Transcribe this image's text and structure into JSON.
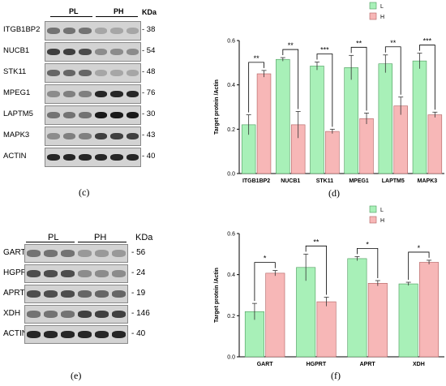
{
  "blots_top": {
    "groups": [
      "PL",
      "PH"
    ],
    "kda_header": "KDa",
    "rows": [
      {
        "protein": "ITGB1BP2",
        "kda": "- 38",
        "intensity": [
          0.55,
          0.55,
          0.55,
          0.35,
          0.35,
          0.35
        ]
      },
      {
        "protein": "NUCB1",
        "kda": "- 54",
        "intensity": [
          0.75,
          0.75,
          0.7,
          0.45,
          0.45,
          0.45
        ]
      },
      {
        "protein": "STK11",
        "kda": "- 48",
        "intensity": [
          0.6,
          0.6,
          0.6,
          0.35,
          0.35,
          0.35
        ]
      },
      {
        "protein": "MPEG1",
        "kda": "- 76",
        "intensity": [
          0.45,
          0.5,
          0.5,
          0.85,
          0.85,
          0.85
        ]
      },
      {
        "protein": "LAPTM5",
        "kda": "- 30",
        "intensity": [
          0.55,
          0.55,
          0.55,
          0.9,
          0.9,
          0.9
        ]
      },
      {
        "protein": "MAPK3",
        "kda": "- 43",
        "intensity": [
          0.45,
          0.5,
          0.5,
          0.75,
          0.75,
          0.75
        ]
      },
      {
        "protein": "ACTIN",
        "kda": "- 40",
        "intensity": [
          0.85,
          0.85,
          0.85,
          0.85,
          0.85,
          0.85
        ]
      }
    ],
    "caption": "(c)"
  },
  "blots_bottom": {
    "groups": [
      "PL",
      "PH"
    ],
    "kda_header": "KDa",
    "rows": [
      {
        "protein": "GART",
        "kda": "- 56",
        "intensity": [
          0.55,
          0.55,
          0.55,
          0.4,
          0.4,
          0.4
        ]
      },
      {
        "protein": "HGPRT",
        "kda": "- 24",
        "intensity": [
          0.7,
          0.7,
          0.7,
          0.45,
          0.45,
          0.45
        ]
      },
      {
        "protein": "APRT",
        "kda": "- 19",
        "intensity": [
          0.7,
          0.7,
          0.7,
          0.6,
          0.6,
          0.6
        ]
      },
      {
        "protein": "XDH",
        "kda": "- 146",
        "intensity": [
          0.55,
          0.55,
          0.55,
          0.75,
          0.75,
          0.75
        ]
      },
      {
        "protein": "ACTIN",
        "kda": "- 40",
        "intensity": [
          0.85,
          0.85,
          0.85,
          0.85,
          0.85,
          0.85
        ]
      }
    ],
    "caption": "(e)"
  },
  "colors": {
    "green": "#a8f0b8",
    "green_edge": "#4a9a5a",
    "red": "#f7b7b7",
    "red_edge": "#b06060"
  },
  "chart_data": [
    {
      "type": "bar",
      "caption": "(d)",
      "categories": [
        "ITGB1BP2",
        "NUCB1",
        "STK11",
        "MPEG1",
        "LAPTM5",
        "MAPK3"
      ],
      "series": [
        {
          "name": "L",
          "values": [
            0.22,
            0.515,
            0.485,
            0.478,
            0.495,
            0.508
          ],
          "errors": [
            0.045,
            0.008,
            0.018,
            0.055,
            0.04,
            0.035
          ]
        },
        {
          "name": "H",
          "values": [
            0.45,
            0.22,
            0.19,
            0.248,
            0.305,
            0.265
          ],
          "errors": [
            0.015,
            0.06,
            0.01,
            0.025,
            0.04,
            0.012
          ]
        }
      ],
      "significance": [
        "**",
        "**",
        "***",
        "**",
        "**",
        "***"
      ],
      "ylabel": "Target protein /Actin",
      "xlabel": "",
      "ylim": [
        0,
        0.6
      ],
      "yticks": [
        "0.0",
        "0.2",
        "0.4",
        "0.6"
      ],
      "legend_placement": "top-right"
    },
    {
      "type": "bar",
      "caption": "(f)",
      "categories": [
        "GART",
        "HGPRT",
        "APRT",
        "XDH"
      ],
      "series": [
        {
          "name": "L",
          "values": [
            0.22,
            0.435,
            0.478,
            0.355
          ],
          "errors": [
            0.04,
            0.065,
            0.01,
            0.008
          ]
        },
        {
          "name": "H",
          "values": [
            0.407,
            0.268,
            0.358,
            0.46
          ],
          "errors": [
            0.013,
            0.022,
            0.013,
            0.01
          ]
        }
      ],
      "significance": [
        "*",
        "**",
        "*",
        "*"
      ],
      "ylabel": "Target protein /Actin",
      "xlabel": "",
      "ylim": [
        0,
        0.6
      ],
      "yticks": [
        "0.0",
        "0.2",
        "0.4",
        "0.6"
      ],
      "legend_placement": "top-right"
    }
  ]
}
